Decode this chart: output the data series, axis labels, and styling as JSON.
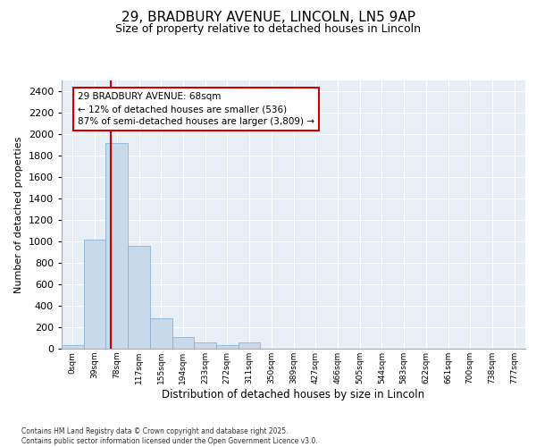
{
  "title_line1": "29, BRADBURY AVENUE, LINCOLN, LN5 9AP",
  "title_line2": "Size of property relative to detached houses in Lincoln",
  "xlabel": "Distribution of detached houses by size in Lincoln",
  "ylabel": "Number of detached properties",
  "categories": [
    "0sqm",
    "39sqm",
    "78sqm",
    "117sqm",
    "155sqm",
    "194sqm",
    "233sqm",
    "272sqm",
    "311sqm",
    "350sqm",
    "389sqm",
    "427sqm",
    "466sqm",
    "505sqm",
    "544sqm",
    "583sqm",
    "622sqm",
    "661sqm",
    "700sqm",
    "738sqm",
    "777sqm"
  ],
  "bar_values": [
    30,
    1020,
    1920,
    960,
    280,
    105,
    55,
    30,
    55,
    0,
    0,
    0,
    0,
    0,
    0,
    0,
    0,
    0,
    0,
    0,
    0
  ],
  "bar_color": "#c8d9ea",
  "bar_edge_color": "#7aaecf",
  "ylim": [
    0,
    2500
  ],
  "yticks": [
    0,
    200,
    400,
    600,
    800,
    1000,
    1200,
    1400,
    1600,
    1800,
    2000,
    2200,
    2400
  ],
  "red_line_x": 1.74,
  "annotation_text": "29 BRADBURY AVENUE: 68sqm\n← 12% of detached houses are smaller (536)\n87% of semi-detached houses are larger (3,809) →",
  "annotation_box_color": "#ffffff",
  "annotation_box_edge": "#cc0000",
  "red_line_color": "#cc0000",
  "background_color": "#e8eef5",
  "footer_text": "Contains HM Land Registry data © Crown copyright and database right 2025.\nContains public sector information licensed under the Open Government Licence v3.0.",
  "title_fontsize": 11,
  "subtitle_fontsize": 9,
  "grid_color": "#ffffff"
}
